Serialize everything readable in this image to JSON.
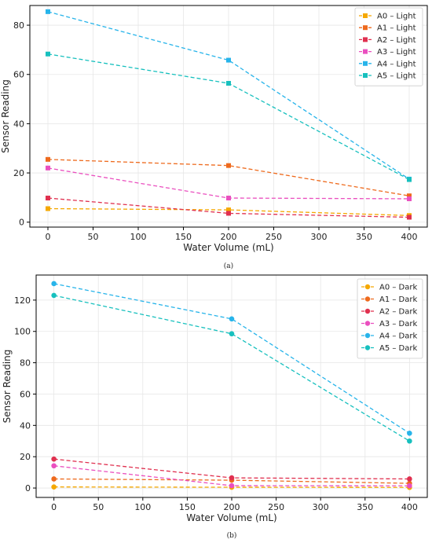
{
  "chart_data": [
    {
      "type": "line",
      "caption": "(a)",
      "xlabel": "Water Volume (mL)",
      "ylabel": "Sensor Reading",
      "xlim": [
        -20,
        420
      ],
      "ylim": [
        -2,
        88
      ],
      "xticks": [
        0,
        50,
        100,
        150,
        200,
        250,
        300,
        350,
        400
      ],
      "yticks": [
        0,
        20,
        40,
        60,
        80
      ],
      "grid": true,
      "legend_position": "top-right",
      "marker": "square",
      "line_style": "dashed",
      "x": [
        0,
        200,
        400
      ],
      "series": [
        {
          "name": "A0 – Light",
          "color": "#f5a800",
          "values": [
            5.5,
            5.0,
            2.7
          ]
        },
        {
          "name": "A1 – Light",
          "color": "#ee6a1d",
          "values": [
            25.5,
            23.0,
            10.7
          ]
        },
        {
          "name": "A2 – Light",
          "color": "#e0304f",
          "values": [
            9.8,
            3.6,
            2.0
          ]
        },
        {
          "name": "A3 – Light",
          "color": "#ea4fbf",
          "values": [
            22.0,
            9.8,
            9.5
          ]
        },
        {
          "name": "A4 – Light",
          "color": "#27b4ea",
          "values": [
            85.5,
            65.8,
            17.5
          ]
        },
        {
          "name": "A5 – Light",
          "color": "#17c0be",
          "values": [
            68.3,
            56.4,
            17.3
          ]
        }
      ]
    },
    {
      "type": "line",
      "caption": "(b)",
      "xlabel": "Water Volume (mL)",
      "ylabel": "Sensor Reading",
      "xlim": [
        -20,
        420
      ],
      "ylim": [
        -6,
        136
      ],
      "xticks": [
        0,
        50,
        100,
        150,
        200,
        250,
        300,
        350,
        400
      ],
      "yticks": [
        0,
        20,
        40,
        60,
        80,
        100,
        120
      ],
      "grid": true,
      "legend_position": "top-right",
      "marker": "circle",
      "line_style": "dashed",
      "x": [
        0,
        200,
        400
      ],
      "series": [
        {
          "name": "A0 – Dark",
          "color": "#f5a800",
          "values": [
            0.7,
            0.5,
            0.4
          ]
        },
        {
          "name": "A1 – Dark",
          "color": "#ee6a1d",
          "values": [
            5.8,
            5.0,
            3.0
          ]
        },
        {
          "name": "A2 – Dark",
          "color": "#e0304f",
          "values": [
            18.5,
            6.5,
            5.8
          ]
        },
        {
          "name": "A3 – Dark",
          "color": "#ea4fbf",
          "values": [
            14.2,
            1.5,
            1.4
          ]
        },
        {
          "name": "A4 – Dark",
          "color": "#27b4ea",
          "values": [
            130.5,
            108.0,
            35.0
          ]
        },
        {
          "name": "A5 – Dark",
          "color": "#17c0be",
          "values": [
            123.0,
            98.5,
            30.0
          ]
        }
      ]
    }
  ]
}
